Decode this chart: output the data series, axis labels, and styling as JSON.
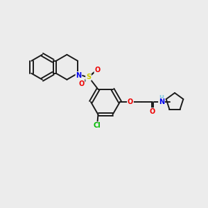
{
  "background_color": "#ececec",
  "bond_color": "#1a1a1a",
  "atom_colors": {
    "N": "#0000ee",
    "O": "#ee0000",
    "S": "#cccc00",
    "Cl": "#00bb00",
    "H": "#7ec8e3",
    "C": "#1a1a1a"
  },
  "bond_lw": 1.4,
  "fontsize": 7.0
}
